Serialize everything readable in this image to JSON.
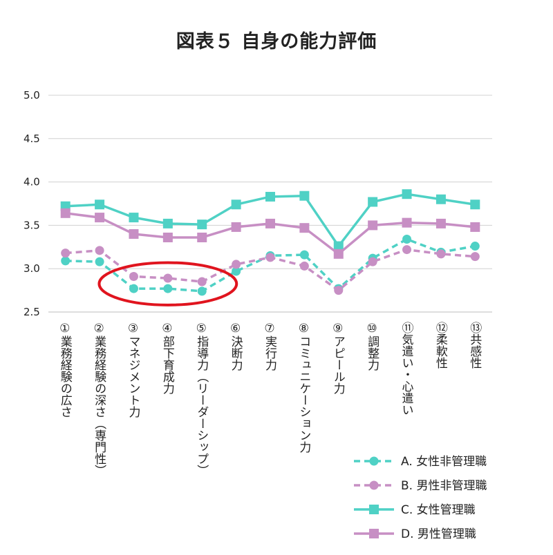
{
  "chart_data": {
    "type": "line",
    "title": "図表５ 自身の能力評価",
    "ylim": [
      2.5,
      5.0
    ],
    "yticks": [
      "2.5",
      "3.0",
      "3.5",
      "4.0",
      "4.5",
      "5.0"
    ],
    "grid": true,
    "legend_position": "bottom-right",
    "categories": [
      "①業務経験の広さ",
      "②業務経験の深さ（専門性）",
      "③マネジメント力",
      "④部下育成力",
      "⑤指導力（リーダーシップ）",
      "⑥決断力",
      "⑦実行力",
      "⑧コミュニケーション力",
      "⑨アピール力",
      "⑩調整力",
      "⑪気遣い・心遣い",
      "⑫柔軟性",
      "⑬共感性"
    ],
    "series": [
      {
        "name": "A. 女性非管理職",
        "color": "#4fd1c5",
        "dashed": true,
        "marker": "circle",
        "values": [
          3.09,
          3.08,
          2.77,
          2.77,
          2.74,
          2.97,
          3.15,
          3.16,
          2.77,
          3.12,
          3.34,
          3.19,
          3.26
        ]
      },
      {
        "name": "B. 男性非管理職",
        "color": "#c78fc4",
        "dashed": true,
        "marker": "circle",
        "values": [
          3.18,
          3.21,
          2.91,
          2.89,
          2.85,
          3.05,
          3.13,
          3.03,
          2.75,
          3.08,
          3.22,
          3.17,
          3.14
        ]
      },
      {
        "name": "C. 女性管理職",
        "color": "#4fd1c5",
        "dashed": false,
        "marker": "square",
        "values": [
          3.72,
          3.74,
          3.59,
          3.52,
          3.51,
          3.74,
          3.83,
          3.84,
          3.26,
          3.77,
          3.86,
          3.8,
          3.74
        ]
      },
      {
        "name": "D. 男性管理職",
        "color": "#c78fc4",
        "dashed": false,
        "marker": "square",
        "values": [
          3.64,
          3.59,
          3.4,
          3.36,
          3.36,
          3.48,
          3.52,
          3.47,
          3.17,
          3.5,
          3.53,
          3.52,
          3.48
        ]
      }
    ],
    "annotation": {
      "shape": "ellipse",
      "color": "#e0141e",
      "highlight_categories": [
        2,
        3,
        4
      ]
    }
  }
}
